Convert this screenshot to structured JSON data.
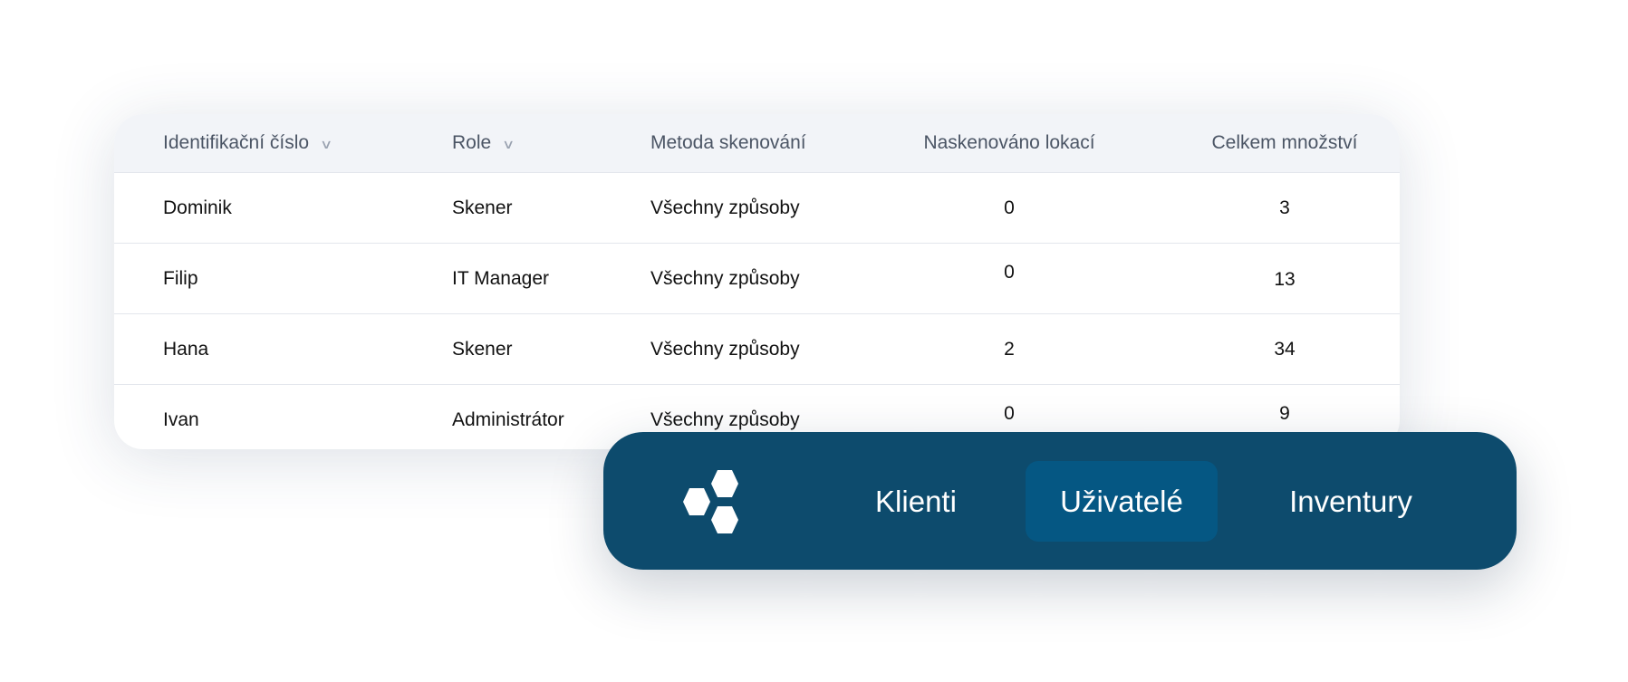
{
  "table": {
    "headers": [
      {
        "label": "Identifikační číslo",
        "sortable": true
      },
      {
        "label": "Role",
        "sortable": true
      },
      {
        "label": "Metoda skenování"
      },
      {
        "label": "Naskenováno lokací"
      },
      {
        "label": "Celkem množství"
      }
    ],
    "rows": [
      {
        "id": "Dominik",
        "role": "Skener",
        "method": "Všechny způsoby",
        "locations": "0",
        "quantity": "3"
      },
      {
        "id": "Filip",
        "role": "IT Manager",
        "method": "Všechny způsoby",
        "locations": "0",
        "quantity": "13"
      },
      {
        "id": "Hana",
        "role": "Skener",
        "method": "Všechny způsoby",
        "locations": "2",
        "quantity": "34"
      },
      {
        "id": "Ivan",
        "role": "Administrátor",
        "method": "Všechny způsoby",
        "locations": "0",
        "quantity": "9"
      }
    ]
  },
  "nav": {
    "logo_icon": "hexagon-cluster-icon",
    "items": [
      {
        "label": "Klienti",
        "active": false
      },
      {
        "label": "Uživatelé",
        "active": true
      },
      {
        "label": "Inventury",
        "active": false
      }
    ],
    "colors": {
      "background": "#0d4b6d",
      "active": "#055783"
    }
  }
}
